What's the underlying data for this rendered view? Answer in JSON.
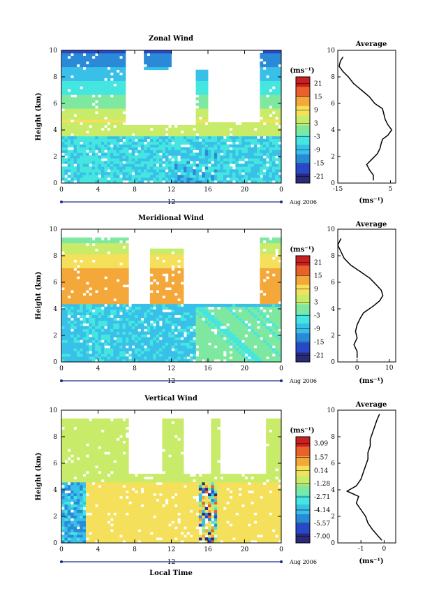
{
  "figure": {
    "xlabel": "Local Time",
    "date_label": "Aug 2006",
    "day_label": "12"
  },
  "chart_data": [
    {
      "type": "heatmap",
      "title": "Zonal Wind",
      "xlabel": "",
      "ylabel": "Height (km)",
      "x_ticks": [
        "0",
        "4",
        "8",
        "12",
        "16",
        "20",
        "0"
      ],
      "y_ticks": [
        "0",
        "2",
        "4",
        "6",
        "8",
        "10"
      ],
      "xlim": [
        0,
        24
      ],
      "ylim": [
        0,
        10
      ],
      "colorbar": {
        "unit": "(ms⁻¹)",
        "ticks": [
          "21",
          "15",
          "9",
          "3",
          "-3",
          "-9",
          "-15",
          "-21"
        ],
        "range": [
          -24,
          24
        ]
      },
      "contours": true,
      "average_profile": {
        "title": "Average",
        "xlabel": "(ms⁻¹)",
        "x_ticks": [
          "-15",
          "5"
        ],
        "xlim": [
          -15,
          7
        ],
        "y_ticks": [
          "0",
          "2",
          "4",
          "6",
          "8",
          "10"
        ],
        "points": [
          [
            -1.5,
            0.2
          ],
          [
            -1.5,
            0.6
          ],
          [
            -3,
            1
          ],
          [
            -4,
            1.4
          ],
          [
            -2,
            1.8
          ],
          [
            0,
            2.2
          ],
          [
            1,
            2.6
          ],
          [
            1.5,
            3
          ],
          [
            2,
            3.3
          ],
          [
            4,
            3.6
          ],
          [
            5.5,
            4
          ],
          [
            4,
            4.4
          ],
          [
            3,
            4.8
          ],
          [
            2.5,
            5.2
          ],
          [
            2,
            5.6
          ],
          [
            -1,
            6
          ],
          [
            -3,
            6.5
          ],
          [
            -6,
            7
          ],
          [
            -9,
            7.5
          ],
          [
            -11,
            8
          ],
          [
            -13,
            8.4
          ],
          [
            -14.5,
            8.8
          ],
          [
            -14,
            9.2
          ],
          [
            -13,
            9.5
          ]
        ]
      }
    },
    {
      "type": "heatmap",
      "title": "Meridional Wind",
      "xlabel": "",
      "ylabel": "Height (km)",
      "x_ticks": [
        "0",
        "4",
        "8",
        "12",
        "16",
        "20",
        "0"
      ],
      "y_ticks": [
        "0",
        "2",
        "4",
        "6",
        "8",
        "10"
      ],
      "xlim": [
        0,
        24
      ],
      "ylim": [
        0,
        10
      ],
      "colorbar": {
        "unit": "(ms⁻¹)",
        "ticks": [
          "21",
          "15",
          "9",
          "3",
          "-3",
          "-9",
          "-15",
          "-21"
        ],
        "range": [
          -24,
          24
        ]
      },
      "contours": true,
      "average_profile": {
        "title": "Average",
        "xlabel": "(ms⁻¹)",
        "x_ticks": [
          "0",
          "10"
        ],
        "xlim": [
          -6,
          12
        ],
        "y_ticks": [
          "0",
          "2",
          "4",
          "6",
          "8",
          "10"
        ],
        "points": [
          [
            0,
            0.3
          ],
          [
            0,
            0.8
          ],
          [
            -1,
            1.3
          ],
          [
            0,
            1.8
          ],
          [
            -0.5,
            2.3
          ],
          [
            0,
            2.8
          ],
          [
            1,
            3.3
          ],
          [
            2,
            3.7
          ],
          [
            5,
            4.2
          ],
          [
            7,
            4.6
          ],
          [
            8,
            5
          ],
          [
            7.5,
            5.4
          ],
          [
            6,
            5.8
          ],
          [
            4,
            6.3
          ],
          [
            1,
            6.8
          ],
          [
            -2,
            7.3
          ],
          [
            -4,
            7.8
          ],
          [
            -5,
            8.3
          ],
          [
            -6,
            8.8
          ],
          [
            -5,
            9.3
          ]
        ]
      }
    },
    {
      "type": "heatmap",
      "title": "Vertical Wind",
      "xlabel": "Local Time",
      "ylabel": "Height (km)",
      "x_ticks": [
        "0",
        "4",
        "8",
        "12",
        "16",
        "20",
        "0"
      ],
      "y_ticks": [
        "0",
        "2",
        "4",
        "6",
        "8",
        "10"
      ],
      "xlim": [
        0,
        24
      ],
      "ylim": [
        0,
        10
      ],
      "colorbar": {
        "unit": "(ms⁻¹)",
        "ticks": [
          "3.09",
          "1.57",
          "0.14",
          "-1.28",
          "-2.71",
          "-4.14",
          "-5.57",
          "-7.00"
        ],
        "range": [
          -7.7,
          3.8
        ]
      },
      "contours": false,
      "average_profile": {
        "title": "Average",
        "xlabel": "(ms⁻¹)",
        "x_ticks": [
          "-1",
          "0"
        ],
        "xlim": [
          -2,
          0.5
        ],
        "y_ticks": [
          "0",
          "2",
          "4",
          "6",
          "8",
          "10"
        ],
        "points": [
          [
            -0.1,
            0.2
          ],
          [
            -0.3,
            0.6
          ],
          [
            -0.5,
            1
          ],
          [
            -0.7,
            1.5
          ],
          [
            -0.8,
            2
          ],
          [
            -1,
            2.5
          ],
          [
            -1.2,
            3
          ],
          [
            -1.1,
            3.5
          ],
          [
            -1.6,
            3.9
          ],
          [
            -1.2,
            4.3
          ],
          [
            -1,
            4.8
          ],
          [
            -0.9,
            5.3
          ],
          [
            -0.8,
            5.8
          ],
          [
            -0.7,
            6.3
          ],
          [
            -0.7,
            6.8
          ],
          [
            -0.6,
            7.3
          ],
          [
            -0.6,
            7.8
          ],
          [
            -0.5,
            8.3
          ],
          [
            -0.4,
            8.8
          ],
          [
            -0.3,
            9.3
          ],
          [
            -0.2,
            9.7
          ]
        ]
      }
    }
  ],
  "colors": {
    "colormap": [
      "#2a2a7a",
      "#2848c8",
      "#2a8ad8",
      "#38c0e8",
      "#46e6e0",
      "#7ee8a0",
      "#c8ec6a",
      "#f4e05a",
      "#f4a83a",
      "#e8602a",
      "#c82020"
    ]
  }
}
